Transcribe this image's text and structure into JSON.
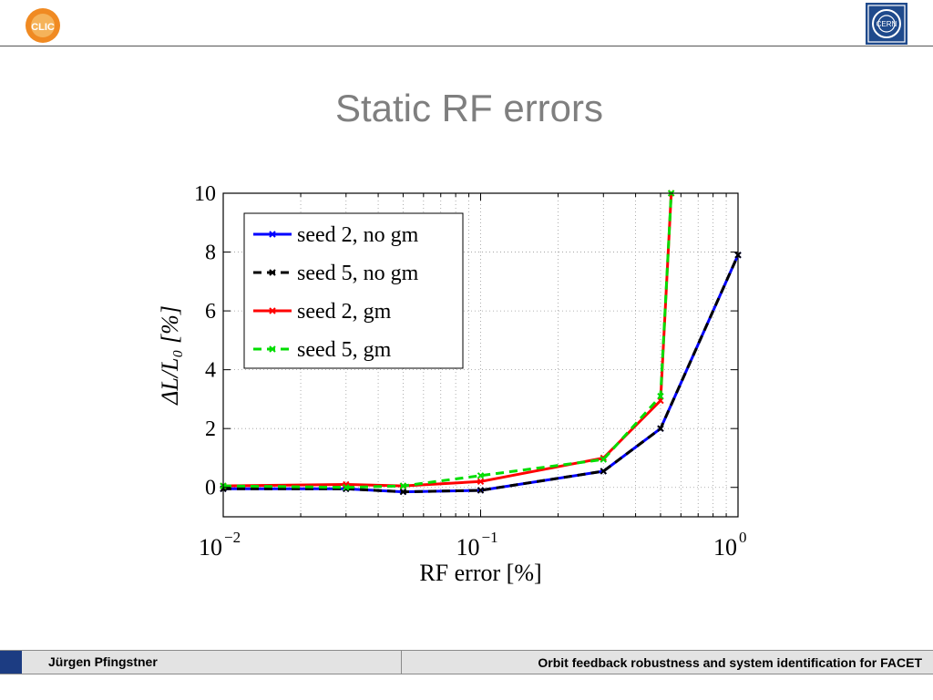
{
  "slide": {
    "title": "Static RF errors",
    "footer_author": "Jürgen Pfingstner",
    "footer_talk": "Orbit feedback robustness and system identification for FACET",
    "clic_logo_text": "CLIC",
    "cern_logo_text": "CERN"
  },
  "colors": {
    "title": "#7f7f7f",
    "footer_accent": "#1c3c82"
  },
  "chart_data": {
    "type": "line",
    "title": "",
    "xlabel": "RF error [%]",
    "ylabel": "ΔL/L₀ [%]",
    "xscale": "log",
    "xlim": [
      0.01,
      1
    ],
    "ylim": [
      -1,
      10
    ],
    "xticks": [
      {
        "value": 0.01,
        "base": "10",
        "exp": "−2"
      },
      {
        "value": 0.1,
        "base": "10",
        "exp": "−1"
      },
      {
        "value": 1,
        "base": "10",
        "exp": "0"
      }
    ],
    "yticks": [
      0,
      2,
      4,
      6,
      8,
      10
    ],
    "grid": true,
    "legend_position": "top-left",
    "series": [
      {
        "name": "seed 2, no gm",
        "color": "#0000ff",
        "dash": "solid",
        "x": [
          0.01,
          0.03,
          0.05,
          0.1,
          0.3,
          0.5,
          1.0
        ],
        "y": [
          -0.05,
          -0.05,
          -0.15,
          -0.1,
          0.55,
          2.0,
          7.9
        ]
      },
      {
        "name": "seed 5, no gm",
        "color": "#000000",
        "dash": "dashed",
        "x": [
          0.01,
          0.03,
          0.05,
          0.1,
          0.3,
          0.5,
          1.0
        ],
        "y": [
          -0.05,
          -0.05,
          -0.15,
          -0.1,
          0.55,
          2.0,
          7.9
        ]
      },
      {
        "name": "seed 2, gm",
        "color": "#ff0000",
        "dash": "solid",
        "x": [
          0.01,
          0.03,
          0.05,
          0.1,
          0.3,
          0.5,
          0.55
        ],
        "y": [
          0.05,
          0.1,
          0.05,
          0.2,
          1.0,
          2.95,
          10.0
        ]
      },
      {
        "name": "seed 5, gm",
        "color": "#00dd00",
        "dash": "dashed",
        "x": [
          0.01,
          0.03,
          0.05,
          0.1,
          0.3,
          0.5,
          0.55
        ],
        "y": [
          0.05,
          0.0,
          0.05,
          0.4,
          0.95,
          3.1,
          10.0
        ]
      }
    ]
  }
}
